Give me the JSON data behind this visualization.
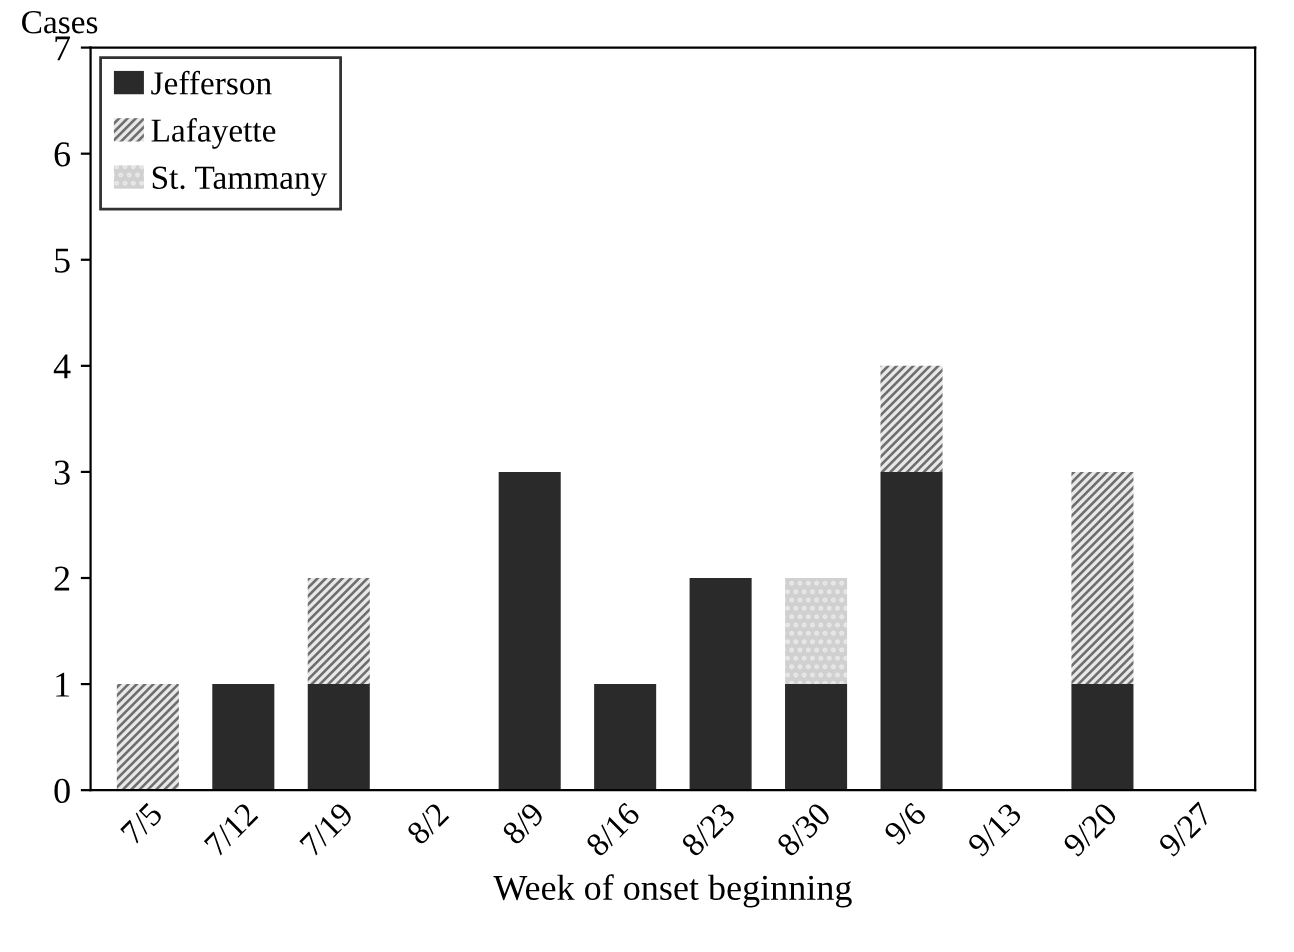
{
  "chart_data": {
    "type": "bar",
    "stacked": true,
    "ylabel": "Cases",
    "xlabel": "Week of onset beginning",
    "categories": [
      "7/5",
      "7/12",
      "7/19",
      "8/2",
      "8/9",
      "8/16",
      "8/23",
      "8/30",
      "9/6",
      "9/13",
      "9/20",
      "9/27"
    ],
    "series": [
      {
        "name": "Jefferson",
        "color": "#2a2a2a",
        "values": [
          0,
          1,
          1,
          0,
          3,
          1,
          2,
          1,
          3,
          0,
          1,
          0
        ]
      },
      {
        "name": "Lafayette",
        "color": "#6e6e6e",
        "values": [
          1,
          0,
          1,
          0,
          0,
          0,
          0,
          0,
          1,
          0,
          2,
          0
        ]
      },
      {
        "name": "St. Tammany",
        "color": "#d0d0d0",
        "values": [
          0,
          0,
          0,
          0,
          0,
          0,
          0,
          1,
          0,
          0,
          0,
          0
        ]
      }
    ],
    "ylim": [
      0,
      7
    ],
    "yticks": [
      0,
      1,
      2,
      3,
      4,
      5,
      6,
      7
    ],
    "grid": false,
    "legend": "top left"
  }
}
